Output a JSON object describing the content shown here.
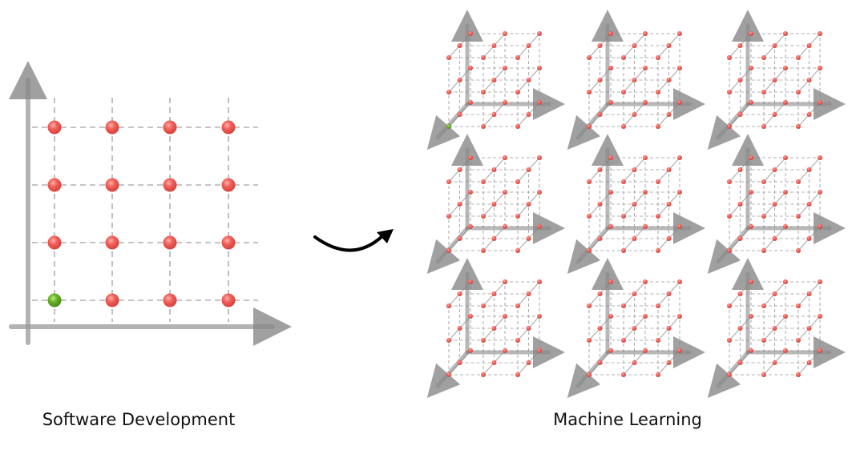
{
  "left": {
    "caption": "Software Development"
  },
  "right": {
    "caption": "Machine Learning"
  },
  "colors": {
    "point": "#f0605a",
    "highlight": "#6ab02a",
    "grid": "#b0b0b0",
    "axis": "#a8a8a8",
    "arrow": "#000000"
  }
}
